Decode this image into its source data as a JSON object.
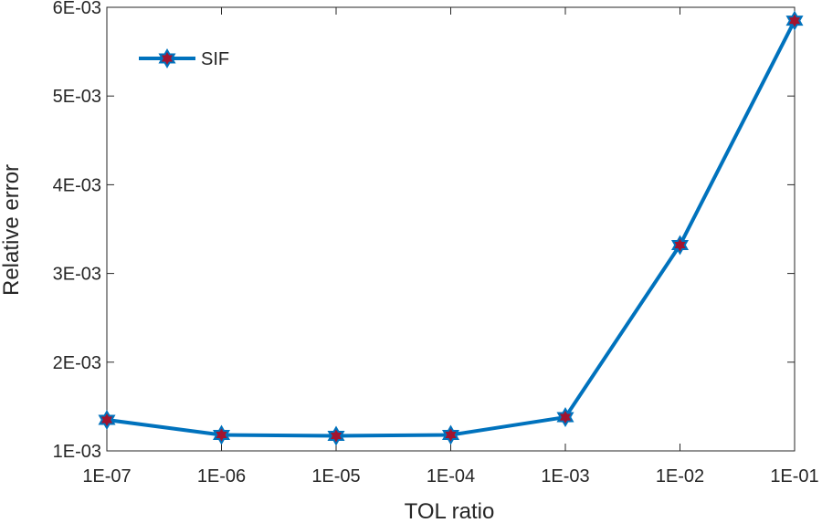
{
  "chart_data": {
    "type": "line",
    "title": "",
    "xlabel": "TOL ratio",
    "ylabel": "Relative error",
    "x_scale": "log",
    "x_ticks": [
      "1E-07",
      "1E-06",
      "1E-05",
      "1E-04",
      "1E-03",
      "1E-02",
      "1E-01"
    ],
    "x_values": [
      1e-07,
      1e-06,
      1e-05,
      0.0001,
      0.001,
      0.01,
      0.1
    ],
    "y_ticks": [
      "1E-03",
      "2E-03",
      "3E-03",
      "4E-03",
      "5E-03",
      "6E-03"
    ],
    "y_tick_values": [
      0.001,
      0.002,
      0.003,
      0.004,
      0.005,
      0.006
    ],
    "ylim": [
      0.001,
      0.006
    ],
    "xlim": [
      1e-07,
      0.1
    ],
    "grid": false,
    "legend_position": "top-left",
    "series": [
      {
        "name": "SIF",
        "color": "#0072BD",
        "marker": "hexagram",
        "marker_face_color": "#A2142F",
        "x": [
          1e-07,
          1e-06,
          1e-05,
          0.0001,
          0.001,
          0.01,
          0.1
        ],
        "values": [
          0.00135,
          0.00118,
          0.00117,
          0.00118,
          0.00138,
          0.00332,
          0.00585
        ]
      }
    ]
  }
}
